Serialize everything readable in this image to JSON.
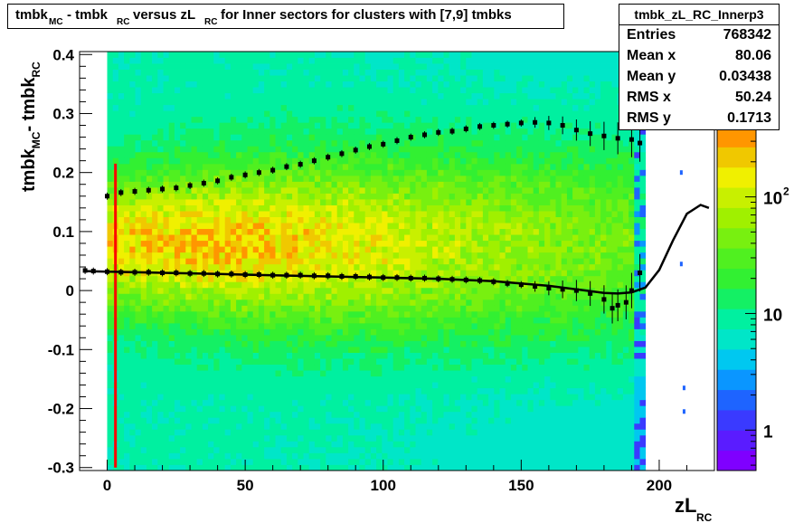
{
  "title": {
    "parts": [
      {
        "text": "tmbk",
        "sub": "MC"
      },
      {
        "text": "- tmbk",
        "sub": "RC"
      },
      {
        "text": "versus zL",
        "sub": "RC"
      },
      {
        "text": "for Inner sectors for clusters with [7,9] tmbks",
        "sub": ""
      }
    ]
  },
  "stats": {
    "name": "tmbk_zL_RC_Innerp3",
    "rows": [
      {
        "label": "Entries",
        "value": "768342"
      },
      {
        "label": "Mean x",
        "value": "80.06"
      },
      {
        "label": "Mean y",
        "value": "0.03438"
      },
      {
        "label": "RMS x",
        "value": "50.24"
      },
      {
        "label": "RMS y",
        "value": "0.1713"
      }
    ]
  },
  "colors": {
    "frame": "#000000",
    "marker": "#000000",
    "red_line": "#ff0000",
    "palette": [
      "#7f00ff",
      "#5a1cff",
      "#3a3aff",
      "#1e64ff",
      "#0a96ff",
      "#00c8f0",
      "#00e6c8",
      "#00f0a0",
      "#14f064",
      "#32f032",
      "#50f020",
      "#78f010",
      "#a0f000",
      "#c8f000",
      "#f0f000",
      "#f0c800",
      "#ff9600"
    ]
  },
  "chart_data": {
    "type": "heatmap",
    "title": "tmbk_MC - tmbk_RC versus zL_RC for Inner sectors for clusters with [7,9] tmbks",
    "xlabel": {
      "text": "zL",
      "sub": "RC"
    },
    "ylabel": {
      "text": "tmbk",
      "sub1": "MC",
      "text2": "- tmbk",
      "sub2": "RC"
    },
    "xlim": [
      -10,
      220
    ],
    "ylim": [
      -0.305,
      0.405
    ],
    "x_ticks": [
      "0",
      "50",
      "100",
      "150",
      "200"
    ],
    "x_tick_values": [
      0,
      50,
      100,
      150,
      200
    ],
    "y_ticks": [
      "-0.3",
      "-0.2",
      "-0.1",
      "0",
      "0.1",
      "0.2",
      "0.3",
      "0.4"
    ],
    "y_tick_values": [
      -0.3,
      -0.2,
      -0.1,
      0,
      0.1,
      0.2,
      0.3,
      0.4
    ],
    "z_scale": "log",
    "zlim": [
      0.45,
      400
    ],
    "z_ticks": [
      {
        "label": "1",
        "value": 1
      },
      {
        "label": "10",
        "value": 10
      },
      {
        "label": "10",
        "sup": "2",
        "value": 100
      }
    ],
    "heatmap": {
      "x_range": [
        0,
        195
      ],
      "y_range": [
        -0.305,
        0.405
      ],
      "description_peak_y": 0.08,
      "sparse_points": [
        {
          "x": 208,
          "y": 0.2
        },
        {
          "x": 208,
          "y": 0.045
        },
        {
          "x": 209,
          "y": -0.165
        },
        {
          "x": 209,
          "y": -0.205
        }
      ]
    },
    "red_line": {
      "x": 3,
      "y_range": [
        -0.3,
        0.215
      ]
    },
    "series": [
      {
        "x": [
          0,
          5,
          10,
          15,
          20,
          25,
          30,
          35,
          40,
          45,
          50,
          55,
          60,
          65,
          70,
          75,
          80,
          85,
          90,
          95,
          100,
          105,
          110,
          115,
          120,
          125,
          130,
          135,
          140,
          145,
          150,
          155,
          160,
          165,
          170,
          175,
          180,
          185,
          190,
          193
        ],
        "y": [
          0.16,
          0.166,
          0.168,
          0.17,
          0.172,
          0.174,
          0.178,
          0.182,
          0.186,
          0.192,
          0.196,
          0.2,
          0.204,
          0.21,
          0.214,
          0.22,
          0.226,
          0.232,
          0.238,
          0.244,
          0.248,
          0.254,
          0.26,
          0.264,
          0.268,
          0.27,
          0.274,
          0.278,
          0.28,
          0.282,
          0.284,
          0.285,
          0.284,
          0.28,
          0.272,
          0.266,
          0.262,
          0.258,
          0.256,
          0.25
        ]
      },
      {
        "x": [
          -8,
          -5,
          0,
          5,
          10,
          15,
          20,
          25,
          30,
          35,
          40,
          45,
          50,
          55,
          60,
          65,
          70,
          75,
          80,
          85,
          90,
          95,
          100,
          105,
          110,
          115,
          120,
          125,
          130,
          135,
          140,
          145,
          150,
          155,
          160,
          165,
          170,
          175,
          180,
          183,
          185,
          188,
          190,
          193
        ],
        "y": [
          0.034,
          0.033,
          0.032,
          0.031,
          0.031,
          0.031,
          0.03,
          0.03,
          0.029,
          0.029,
          0.028,
          0.028,
          0.027,
          0.027,
          0.026,
          0.026,
          0.026,
          0.025,
          0.025,
          0.024,
          0.024,
          0.023,
          0.022,
          0.022,
          0.021,
          0.021,
          0.02,
          0.019,
          0.018,
          0.017,
          0.015,
          0.012,
          0.01,
          0.007,
          0.004,
          0.002,
          0.0,
          -0.005,
          -0.015,
          -0.03,
          -0.025,
          -0.02,
          0.0,
          0.03
        ]
      },
      {
        "x": [
          -8,
          0,
          20,
          40,
          60,
          80,
          100,
          120,
          140,
          160,
          170,
          180,
          185,
          190,
          195,
          200,
          205,
          210,
          215,
          218
        ],
        "y": [
          0.033,
          0.032,
          0.03,
          0.028,
          0.026,
          0.024,
          0.022,
          0.02,
          0.016,
          0.008,
          0.002,
          -0.004,
          -0.005,
          -0.003,
          0.005,
          0.035,
          0.085,
          0.13,
          0.145,
          0.14
        ]
      }
    ]
  }
}
